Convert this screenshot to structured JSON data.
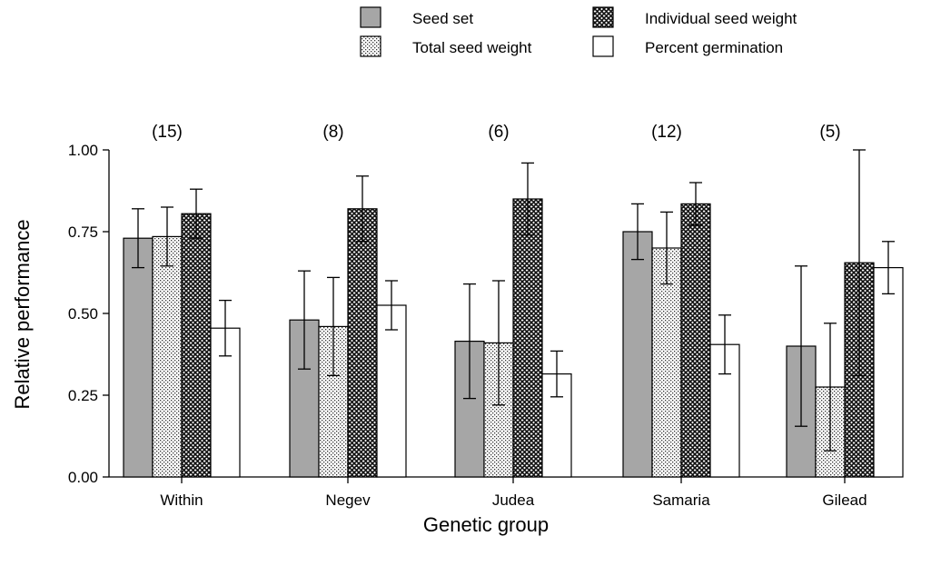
{
  "chart_data": {
    "type": "bar",
    "title": "",
    "xlabel": "Genetic group",
    "ylabel": "Relative performance",
    "ylim": [
      0,
      1
    ],
    "yticks": [
      "0.00",
      "0.25",
      "0.50",
      "0.75",
      "1.00"
    ],
    "ytick_values": [
      0,
      0.25,
      0.5,
      0.75,
      1.0
    ],
    "categories": [
      "Within",
      "Negev",
      "Judea",
      "Samaria",
      "Gilead"
    ],
    "sample_sizes": [
      "(15)",
      "(8)",
      "(6)",
      "(12)",
      "(5)"
    ],
    "legend_position": "top-right",
    "series": [
      {
        "name": "Seed set",
        "pattern": "solid-gray",
        "color": "#a6a6a6",
        "values": [
          0.73,
          0.48,
          0.415,
          0.75,
          0.4
        ],
        "errors": [
          0.09,
          0.15,
          0.175,
          0.085,
          0.245
        ]
      },
      {
        "name": "Total seed weight",
        "pattern": "dots",
        "color": "#ffffff",
        "values": [
          0.735,
          0.46,
          0.41,
          0.7,
          0.275
        ],
        "errors": [
          0.09,
          0.15,
          0.19,
          0.11,
          0.195
        ]
      },
      {
        "name": "Individual seed weight",
        "pattern": "crosshatch",
        "color": "#222222",
        "values": [
          0.805,
          0.82,
          0.85,
          0.835,
          0.655
        ],
        "errors": [
          0.075,
          0.1,
          0.11,
          0.065,
          0.345
        ]
      },
      {
        "name": "Percent germination",
        "pattern": "white",
        "color": "#ffffff",
        "values": [
          0.455,
          0.525,
          0.315,
          0.405,
          0.64
        ],
        "errors": [
          0.085,
          0.075,
          0.07,
          0.09,
          0.08
        ]
      }
    ]
  }
}
